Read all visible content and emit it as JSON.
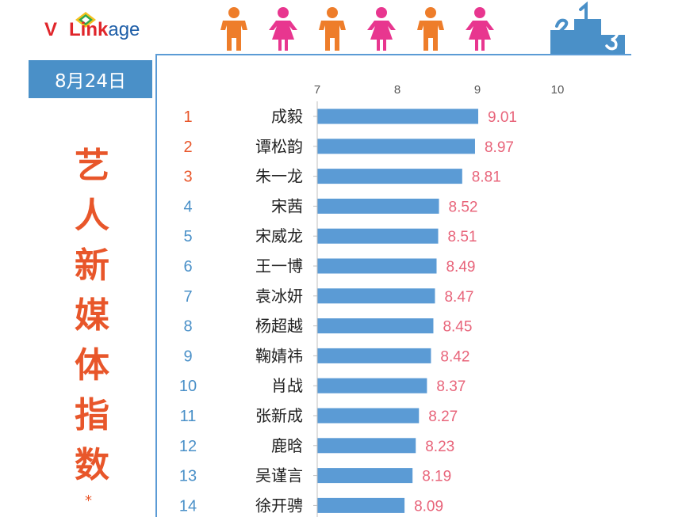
{
  "logo": {
    "v": "V",
    "link": "Link",
    "age": "age"
  },
  "date_label": "8月24日",
  "title_chars": [
    "艺",
    "人",
    "新",
    "媒",
    "体",
    "指",
    "数"
  ],
  "asterisk": "*",
  "colors": {
    "bar": "#5b9bd5",
    "value_label": "#e8647a",
    "rank_top": "#e8562a",
    "rank_other": "#4a90c8",
    "title": "#e8562a",
    "person_orange": "#ee7d2a",
    "person_pink": "#e8368f",
    "podium": "#4a90c8"
  },
  "chart_data": {
    "type": "bar",
    "orientation": "horizontal",
    "x_ticks": [
      7,
      8,
      9,
      10
    ],
    "xlim": [
      7,
      10
    ],
    "title": "",
    "xlabel": "",
    "ylabel": "",
    "ranks": [
      1,
      2,
      3,
      4,
      5,
      6,
      7,
      8,
      9,
      10,
      11,
      12,
      13,
      14
    ],
    "categories": [
      "成毅",
      "谭松韵",
      "朱一龙",
      "宋茜",
      "宋威龙",
      "王一博",
      "袁冰妍",
      "杨超越",
      "鞠婧祎",
      "肖战",
      "张新成",
      "鹿晗",
      "吴谨言",
      "徐开骋"
    ],
    "values": [
      9.01,
      8.97,
      8.81,
      8.52,
      8.51,
      8.49,
      8.47,
      8.45,
      8.42,
      8.37,
      8.27,
      8.23,
      8.19,
      8.09
    ],
    "value_labels": [
      "9.01",
      "8.97",
      "8.81",
      "8.52",
      "8.51",
      "8.49",
      "8.47",
      "8.45",
      "8.42",
      "8.37",
      "8.27",
      "8.23",
      "8.19",
      "8.09"
    ],
    "grid": false,
    "legend": "none"
  }
}
